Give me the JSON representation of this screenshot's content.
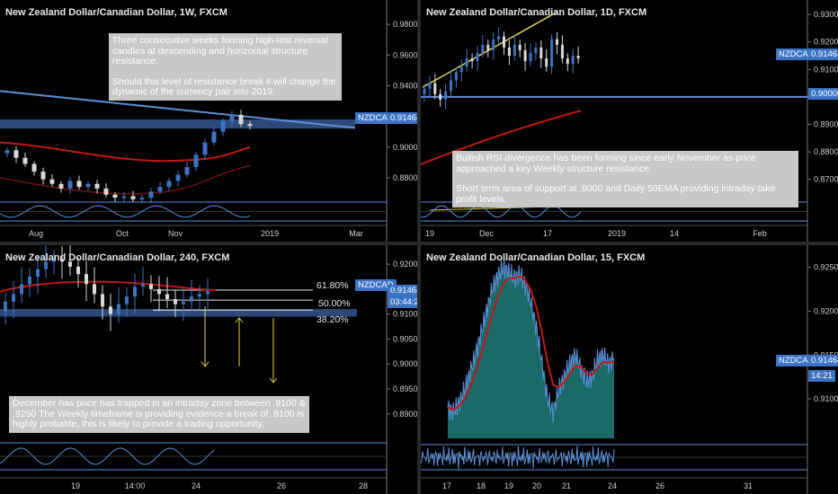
{
  "colors": {
    "background": "#000000",
    "bull": "#3b74c4",
    "bear": "#d9d9d9",
    "ema": "#c21818",
    "zone": "#2b4a7a",
    "trend": "#5d8fd8",
    "yellow_line": "#e0d34a",
    "arrow": "#e0d34a",
    "fib_line": "#e6e6e6",
    "area_fill": "#1f7c7c",
    "tag": "#3b74c4"
  },
  "panels": [
    {
      "id": "weekly",
      "title": "New Zealand Dollar/Canadian Dollar, 1W, FXCM",
      "symbol_tag": "NZDCAD",
      "price_tag": "0.91464",
      "y_ticks": [
        "0.98000",
        "0.96000",
        "0.94000",
        "0.92000",
        "0.90000",
        "0.88000"
      ],
      "x_ticks": [
        "Aug",
        "Oct",
        "Nov",
        "2019",
        "Mar"
      ],
      "note": [
        "Three consecutive weeks forming high-test reversal candles at descending and horizontal structure resistance.",
        "Should this level of resistance break it will change the dynamic of the currency pair into 2019."
      ]
    },
    {
      "id": "daily",
      "title": "New Zealand Dollar/Canadian Dollar, 1D, FXCM",
      "symbol_tag": "NZDCAD",
      "price_tag": "0.91464",
      "level_tag": "0.90000",
      "y_ticks": [
        "0.93000",
        "0.92000",
        "0.91000",
        "0.90000",
        "0.89000",
        "0.88000",
        "0.87000"
      ],
      "x_ticks": [
        "19",
        "Dec",
        "17",
        "2019",
        "14",
        "Feb"
      ],
      "note": [
        "Bullish RSI divergence has been forming since early November as price approached a key Weekly structure resistance.",
        "Short term area of support at .9000 and Daily 50EMA providing intraday take profit levels."
      ]
    },
    {
      "id": "h4",
      "title": "New Zealand Dollar/Canadian Dollar, 240, FXCM",
      "symbol_tag": "NZDCAD",
      "price_tag": "0.91464",
      "countdown": "03:44:21",
      "fib_levels": [
        "61.80%",
        "50.00%",
        "38.20%"
      ],
      "y_ticks": [
        "0.92000",
        "0.91500",
        "0.91000",
        "0.90500",
        "0.90000",
        "0.89500",
        "0.89000"
      ],
      "x_ticks": [
        "19",
        "14:00",
        "24",
        "26",
        "28"
      ],
      "note": [
        "December has price has trapped in an intraday zone between .9100 & .9250 The Weekly timeframe is providing evidence a break of .9100 is highly probable, this is likely to provide a trading opportunity."
      ]
    },
    {
      "id": "m15",
      "title": "New Zealand Dollar/Canadian Dollar, 15, FXCM",
      "symbol_tag": "NZDCAD",
      "price_tag": "0.91464",
      "countdown": "14:21",
      "y_ticks": [
        "0.92500",
        "0.92000",
        "0.91500",
        "0.91000"
      ],
      "x_ticks": [
        "17",
        "18",
        "19",
        "20",
        "21",
        "24",
        "26",
        "31"
      ]
    }
  ],
  "chart_data": [
    {
      "type": "candlestick",
      "title": "New Zealand Dollar/Canadian Dollar, 1W, FXCM",
      "ylim": [
        0.87,
        0.99
      ],
      "last_price": 0.91464,
      "x_ticks": [
        "Aug",
        "Oct",
        "Nov",
        "2019",
        "Mar"
      ],
      "closes": [
        0.898,
        0.893,
        0.889,
        0.884,
        0.879,
        0.876,
        0.873,
        0.878,
        0.874,
        0.876,
        0.873,
        0.869,
        0.867,
        0.868,
        0.866,
        0.867,
        0.871,
        0.874,
        0.878,
        0.882,
        0.887,
        0.895,
        0.903,
        0.91,
        0.917,
        0.921,
        0.915,
        0.914
      ],
      "overlays": [
        "descending trendline",
        "horizontal resistance zone 0.912-0.918",
        "moving averages"
      ]
    },
    {
      "type": "candlestick",
      "title": "New Zealand Dollar/Canadian Dollar, 1D, FXCM",
      "ylim": [
        0.865,
        0.932
      ],
      "last_price": 0.91464,
      "support_level": 0.9,
      "x_ticks": [
        "19",
        "Dec",
        "17",
        "2019",
        "14",
        "Feb"
      ],
      "closes": [
        0.903,
        0.905,
        0.901,
        0.899,
        0.902,
        0.906,
        0.909,
        0.911,
        0.914,
        0.913,
        0.916,
        0.919,
        0.917,
        0.921,
        0.922,
        0.918,
        0.915,
        0.919,
        0.917,
        0.913,
        0.916,
        0.918,
        0.914,
        0.911,
        0.921,
        0.919,
        0.914,
        0.912,
        0.915,
        0.914
      ],
      "overlays": [
        "rising trendline",
        "50EMA",
        "0.90000 support line"
      ]
    },
    {
      "type": "candlestick",
      "title": "New Zealand Dollar/Canadian Dollar, 240, FXCM",
      "ylim": [
        0.886,
        0.922
      ],
      "last_price": 0.91464,
      "fibonacci": [
        {
          "label": "61.80%",
          "value": 0.9148
        },
        {
          "label": "50.00%",
          "value": 0.9128
        },
        {
          "label": "38.20%",
          "value": 0.9108
        }
      ],
      "x_ticks": [
        "19",
        "14:00",
        "24",
        "26",
        "28"
      ],
      "closes": [
        0.9125,
        0.914,
        0.916,
        0.9175,
        0.919,
        0.9205,
        0.921,
        0.9205,
        0.9195,
        0.918,
        0.916,
        0.914,
        0.9115,
        0.91,
        0.912,
        0.9135,
        0.9155,
        0.916,
        0.915,
        0.914,
        0.913,
        0.912,
        0.9125,
        0.9135,
        0.914,
        0.9146
      ],
      "overlays": [
        "EMA",
        "zone 0.9095-0.9110",
        "projected path arrows"
      ]
    },
    {
      "type": "area",
      "title": "New Zealand Dollar/Canadian Dollar, 15, FXCM",
      "ylim": [
        0.9055,
        0.9265
      ],
      "last_price": 0.91464,
      "x_ticks": [
        "17",
        "18",
        "19",
        "20",
        "21",
        "24",
        "26",
        "31"
      ],
      "values": [
        0.909,
        0.9085,
        0.9095,
        0.911,
        0.913,
        0.915,
        0.9175,
        0.92,
        0.9225,
        0.924,
        0.925,
        0.9245,
        0.9238,
        0.9242,
        0.923,
        0.921,
        0.918,
        0.914,
        0.91,
        0.9085,
        0.911,
        0.9125,
        0.914,
        0.915,
        0.9135,
        0.912,
        0.9125,
        0.9145,
        0.915,
        0.914,
        0.9146
      ]
    }
  ]
}
